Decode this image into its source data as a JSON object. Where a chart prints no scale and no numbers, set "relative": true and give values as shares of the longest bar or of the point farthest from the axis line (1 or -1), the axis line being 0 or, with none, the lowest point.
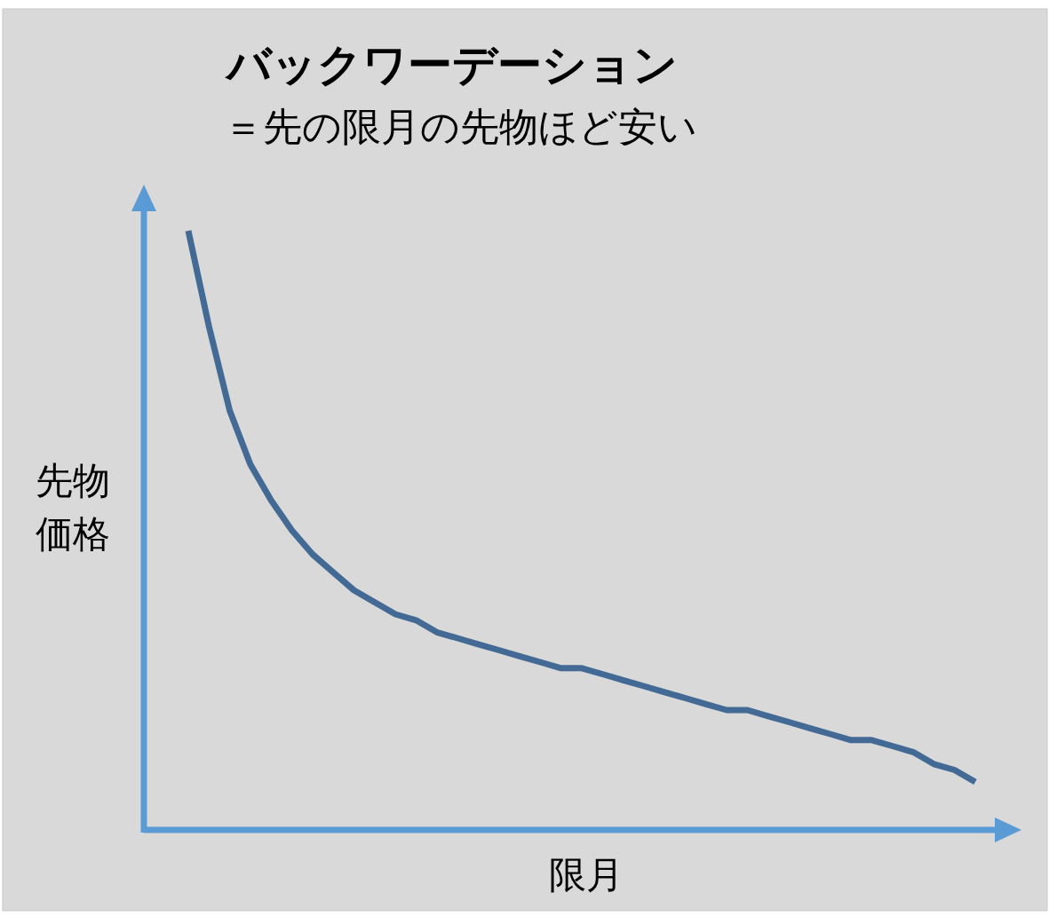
{
  "chart_data": {
    "type": "line",
    "title": "バックワーデーション",
    "subtitle": "＝先の限月の先物ほど安い",
    "xlabel": "限月",
    "ylabel": "先物価格",
    "relative": true,
    "categories": [
      null,
      null,
      null,
      null,
      null,
      null,
      null,
      null,
      null,
      null,
      null,
      null,
      null,
      null,
      null,
      null,
      null,
      null,
      null,
      null,
      null,
      null,
      null,
      null,
      null,
      null,
      null,
      null,
      null,
      null,
      null,
      null,
      null,
      null,
      null,
      null,
      null,
      null,
      null
    ],
    "series": [
      {
        "color": "#436a94",
        "values": [
          1,
          0.84,
          0.7,
          0.61,
          0.55,
          0.5,
          0.46,
          0.43,
          0.4,
          0.38,
          0.36,
          0.35,
          0.33,
          0.32,
          0.31,
          0.3,
          0.29,
          0.28,
          0.27,
          0.27,
          0.26,
          0.25,
          0.24,
          0.23,
          0.22,
          0.21,
          0.2,
          0.2,
          0.19,
          0.18,
          0.17,
          0.16,
          0.15,
          0.15,
          0.14,
          0.13,
          0.11,
          0.1,
          0.08
        ]
      }
    ]
  }
}
